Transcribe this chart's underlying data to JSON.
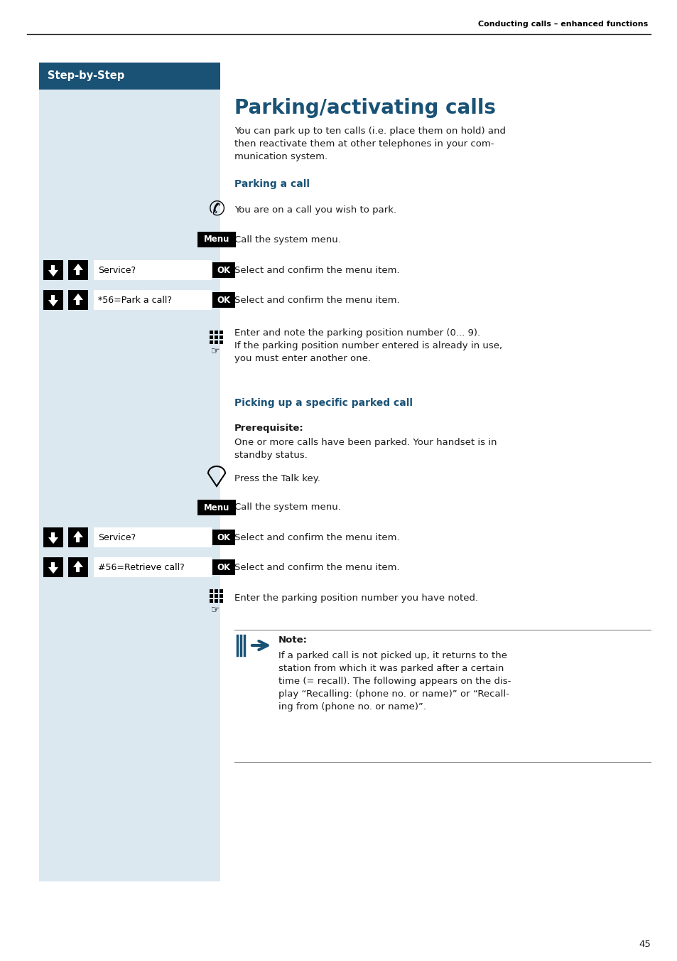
{
  "header_text": "Conducting calls – enhanced functions",
  "step_by_step_label": "Step-by-Step",
  "title": "Parking/activating calls",
  "intro_text": "You can park up to ten calls (i.e. place them on hold) and\nthen reactivate them at other telephones in your com-\nmunication system.",
  "section1_heading": "Parking a call",
  "section2_heading": "Picking up a specific parked call",
  "prerequisite_label": "Prerequisite:",
  "prerequisite_text": "One or more calls have been parked. Your handset is in\nstandby status.",
  "note_label": "Note:",
  "note_text": "If a parked call is not picked up, it returns to the\nstation from which it was parked after a certain\ntime (= recall). The following appears on the dis-\nplay “Recalling: (phone no. or name)” or “Recall-\ning from (phone no. or name)”.",
  "page_number": "45",
  "bg_color": "#ffffff",
  "left_panel_color": "#dce8f0",
  "header_bar_color": "#1a5276",
  "step_by_step_text_color": "#ffffff",
  "section_heading_color": "#1a5276",
  "body_text_color": "#1a1a1a",
  "header_text_color": "#000000",
  "note_arrow_color": "#1a5276"
}
